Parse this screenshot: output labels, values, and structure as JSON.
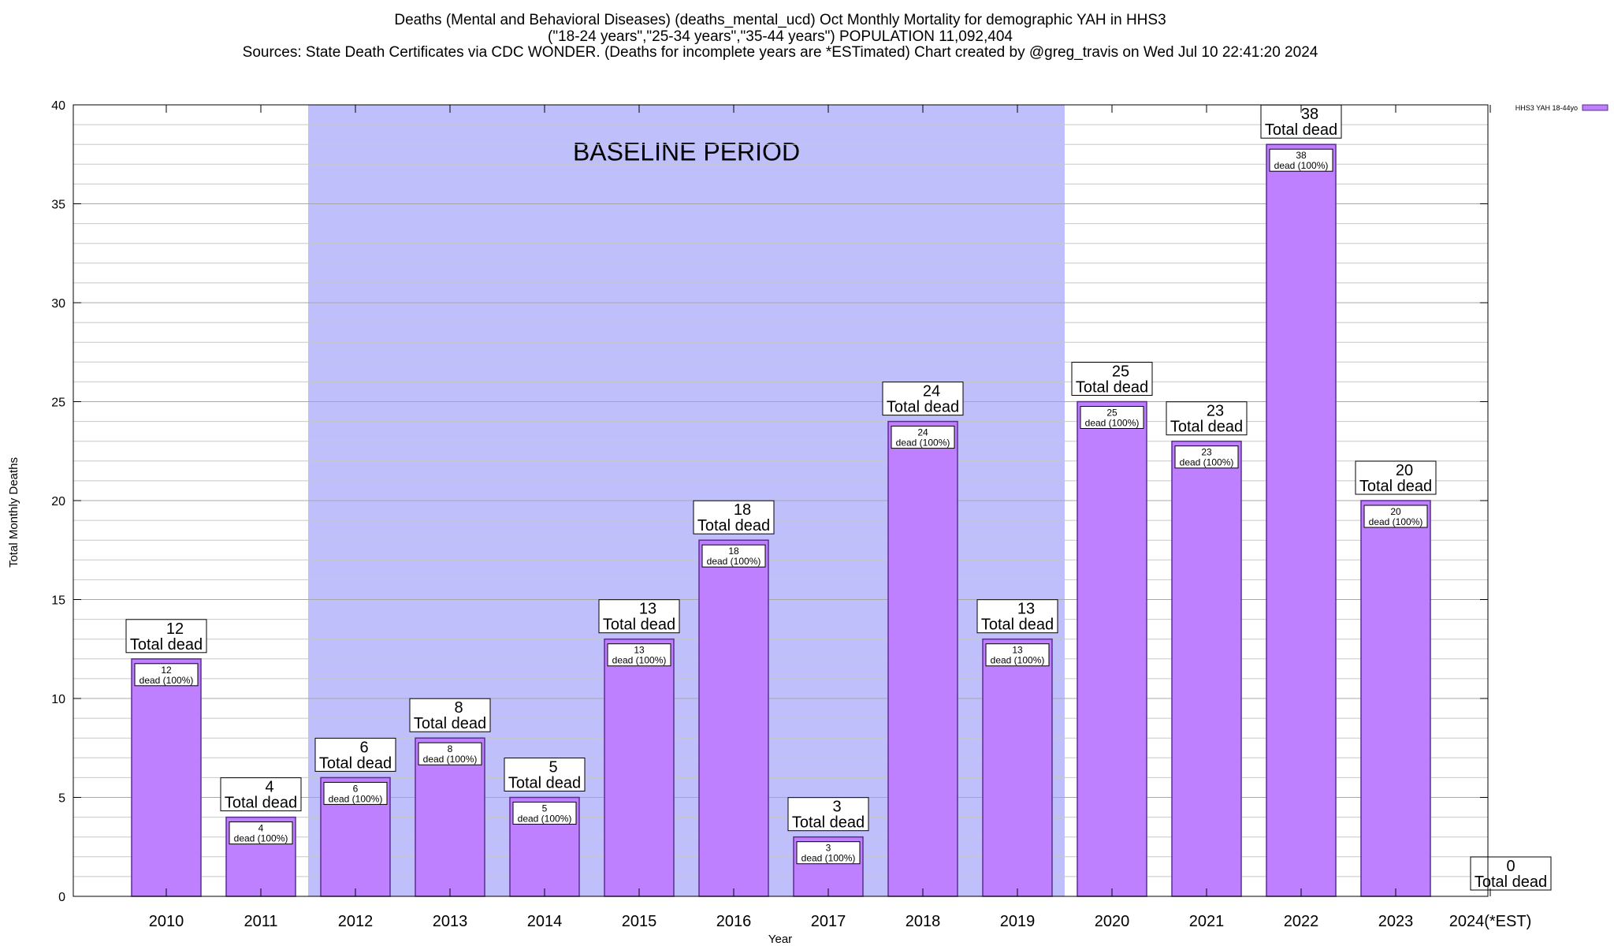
{
  "title_lines": [
    "Deaths (Mental and Behavioral Diseases) (deaths_mental_ucd) Oct Monthly Mortality for demographic YAH in HHS3",
    "(\"18-24 years\",\"25-34 years\",\"35-44 years\") POPULATION 11,092,404",
    "Sources: State Death Certificates via CDC WONDER. (Deaths for incomplete years are *ESTimated)                Chart created by @greg_travis on Wed Jul 10 22:41:20 2024"
  ],
  "chart_data": {
    "type": "bar",
    "categories": [
      "2010",
      "2011",
      "2012",
      "2013",
      "2014",
      "2015",
      "2016",
      "2017",
      "2018",
      "2019",
      "2020",
      "2021",
      "2022",
      "2023",
      "2024(*EST)"
    ],
    "series": [
      {
        "name": "HHS3 YAH 18-44yo",
        "color": "#bf80ff",
        "values": [
          12,
          4,
          6,
          8,
          5,
          13,
          18,
          3,
          24,
          13,
          25,
          23,
          38,
          20,
          0
        ]
      }
    ],
    "xlabel": "Year",
    "ylabel": "Total Monthly Deaths",
    "ylim": [
      0,
      40
    ],
    "y_ticks": [
      0,
      5,
      10,
      15,
      20,
      25,
      30,
      35,
      40
    ],
    "grid": true,
    "legend_position": "top-right",
    "total_label_suffix": "Total dead",
    "inner_label_suffix": "dead (100%)",
    "baseline_region": {
      "label": "BASELINE PERIOD",
      "start_category": "2012",
      "end_category": "2019",
      "color": "#bfbffc"
    }
  }
}
